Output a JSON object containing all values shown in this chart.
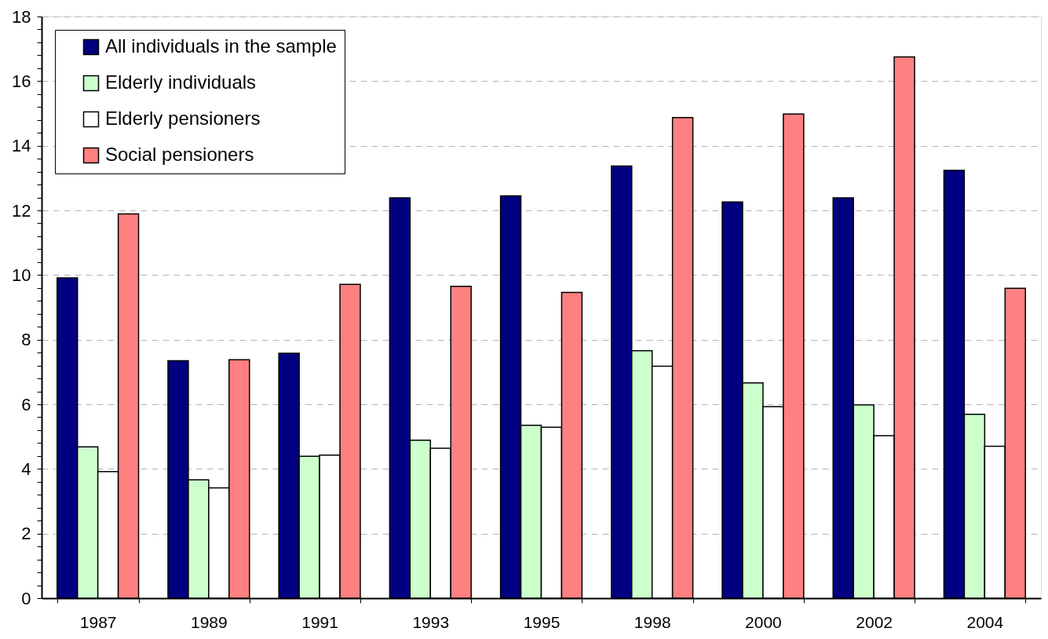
{
  "chart_data": {
    "type": "bar",
    "categories": [
      "1987",
      "1989",
      "1991",
      "1993",
      "1995",
      "1998",
      "2000",
      "2002",
      "2004"
    ],
    "series": [
      {
        "name": "All individuals in the sample",
        "color": "#000080",
        "values": [
          9.91,
          7.35,
          7.58,
          12.39,
          12.45,
          13.37,
          12.26,
          12.39,
          13.24
        ]
      },
      {
        "name": "Elderly individuals",
        "color": "#ccffcc",
        "values": [
          4.68,
          3.66,
          4.39,
          4.89,
          5.35,
          7.66,
          6.66,
          5.98,
          5.69
        ]
      },
      {
        "name": "Elderly pensioners",
        "color": "#ffffff",
        "values": [
          3.92,
          3.41,
          4.43,
          4.64,
          5.29,
          7.18,
          5.93,
          5.03,
          4.7
        ]
      },
      {
        "name": "Social pensioners",
        "color": "#ff8080",
        "values": [
          11.89,
          7.38,
          9.71,
          9.65,
          9.46,
          14.87,
          14.98,
          16.75,
          9.59
        ]
      }
    ],
    "ylim": [
      0,
      18
    ],
    "yticks": [
      0,
      {
        "value": 0.4,
        "label": null
      },
      {
        "value": 0.8,
        "label": null
      },
      {
        "value": 1.2,
        "label": null
      },
      {
        "value": 1.6,
        "label": null
      },
      2,
      {
        "value": 2.4,
        "label": null
      },
      {
        "value": 2.8,
        "label": null
      },
      {
        "value": 3.2,
        "label": null
      },
      {
        "value": 3.6,
        "label": null
      },
      4,
      {
        "value": 4.4,
        "label": null
      },
      {
        "value": 4.8,
        "label": null
      },
      {
        "value": 5.2,
        "label": null
      },
      {
        "value": 5.6,
        "label": null
      },
      6,
      {
        "value": 6.4,
        "label": null
      },
      {
        "value": 6.8,
        "label": null
      },
      {
        "value": 7.2,
        "label": null
      },
      {
        "value": 7.6,
        "label": null
      },
      8,
      {
        "value": 8.4,
        "label": null
      },
      {
        "value": 8.8,
        "label": null
      },
      {
        "value": 9.2,
        "label": null
      },
      {
        "value": 9.6,
        "label": null
      },
      10,
      {
        "value": 10.4,
        "label": null
      },
      {
        "value": 10.8,
        "label": null
      },
      {
        "value": 11.2,
        "label": null
      },
      {
        "value": 11.6,
        "label": null
      },
      12,
      {
        "value": 12.4,
        "label": null
      },
      {
        "value": 12.8,
        "label": null
      },
      {
        "value": 13.2,
        "label": null
      },
      {
        "value": 13.6,
        "label": null
      },
      14,
      {
        "value": 14.4,
        "label": null
      },
      {
        "value": 14.8,
        "label": null
      },
      {
        "value": 15.2,
        "label": null
      },
      {
        "value": 15.6,
        "label": null
      },
      16,
      {
        "value": 16.4,
        "label": null
      },
      {
        "value": 16.8,
        "label": null
      },
      {
        "value": 17.2,
        "label": null
      },
      {
        "value": 17.6,
        "label": null
      },
      18
    ],
    "grid": "y",
    "legend": "top left"
  }
}
